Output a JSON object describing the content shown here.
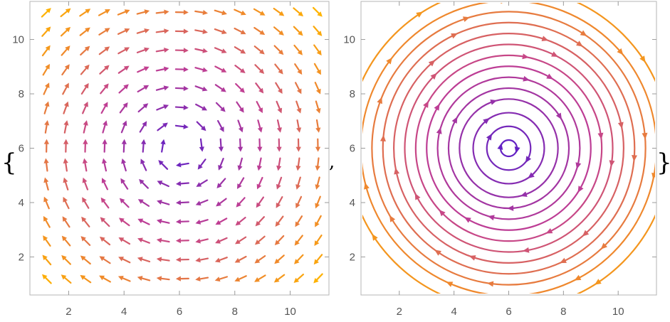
{
  "delimiters": {
    "open": "{",
    "separator": ",",
    "close": "}"
  },
  "colors": {
    "center": "#5a1fc8",
    "mid": "#c23f92",
    "outer": "#f08a2a",
    "edge": "#ffb400"
  },
  "chart_data": [
    {
      "type": "vector-field",
      "title": "",
      "xlabel": "",
      "ylabel": "",
      "field": "rotation about (6, 6)",
      "center": [
        6,
        6
      ],
      "xlim": [
        0.6,
        11.4
      ],
      "ylim": [
        0.6,
        11.4
      ],
      "x_ticks": [
        2,
        4,
        6,
        8,
        10
      ],
      "y_ticks": [
        2,
        4,
        6,
        8,
        10
      ],
      "x_tick_labels": [
        "2",
        "4",
        "6",
        "8",
        "10"
      ],
      "y_tick_labels": [
        "2",
        "4",
        "6",
        "8",
        "10"
      ],
      "grid_x": [
        1.2,
        11.0,
        15
      ],
      "grid_y": [
        1.2,
        11.0,
        15
      ],
      "colormap": "purple-center to orange-outer",
      "grid": false
    },
    {
      "type": "stream",
      "title": "",
      "xlabel": "",
      "ylabel": "",
      "field": "circular stream lines about (6, 6)",
      "center": [
        6,
        6
      ],
      "xlim": [
        0.6,
        11.4
      ],
      "ylim": [
        0.6,
        11.4
      ],
      "x_ticks": [
        2,
        4,
        6,
        8,
        10
      ],
      "y_ticks": [
        2,
        4,
        6,
        8,
        10
      ],
      "x_tick_labels": [
        "2",
        "4",
        "6",
        "8",
        "10"
      ],
      "y_tick_labels": [
        "2",
        "4",
        "6",
        "8",
        "10"
      ],
      "radii": [
        0.3,
        0.8,
        1.3,
        1.8,
        2.2,
        2.6,
        3.0,
        3.4,
        3.8,
        4.2,
        4.6,
        5.0,
        5.4,
        5.9
      ],
      "colormap": "purple-center to orange-outer",
      "grid": false
    }
  ]
}
